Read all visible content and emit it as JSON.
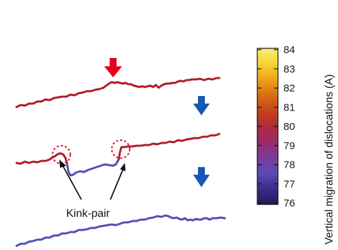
{
  "annotation": {
    "label": "Kink-pair"
  },
  "colorbar": {
    "title": "Vertical migration of dislocations (A)",
    "min": 76,
    "max": 84,
    "ticks": [
      "84",
      "83",
      "82",
      "81",
      "80",
      "79",
      "78",
      "77",
      "76"
    ],
    "stops": [
      "#241a52",
      "#3d2c8a",
      "#5a4ab5",
      "#7a3d9c",
      "#9a2a6a",
      "#b02a3a",
      "#c4441c",
      "#d86e10",
      "#eca31c",
      "#f7d430",
      "#fbee7a"
    ]
  },
  "colors": {
    "arrow_red": "#e4001f",
    "arrow_blue": "#1858b4",
    "dislocation_red": "#b01c2a",
    "dislocation_purple": "#5a4ab5",
    "marker_circle": "#d8102a"
  },
  "icons": [
    "down-arrow-red",
    "down-arrow-blue",
    "down-arrow-blue"
  ]
}
